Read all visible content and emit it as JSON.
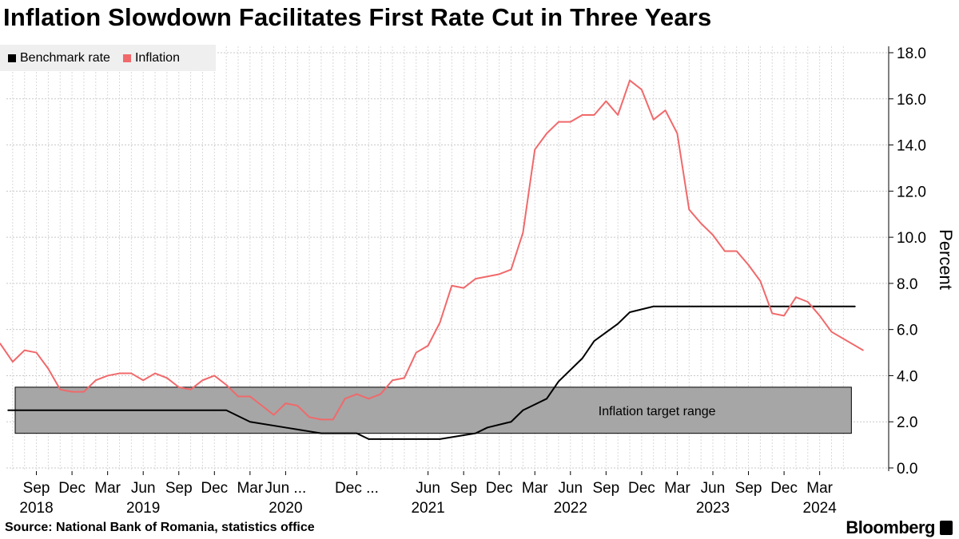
{
  "title": "Inflation Slowdown Facilitates First Rate Cut in Three Years",
  "source": "Source: National Bank of Romania, statistics office",
  "brand": "Bloomberg",
  "colors": {
    "benchmark": "#000000",
    "inflation": "#f0696b",
    "band": "#a6a6a6",
    "grid": "#c8c8c8"
  },
  "chart_data": {
    "type": "line",
    "title": "Inflation Slowdown Facilitates First Rate Cut in Three Years",
    "ylabel": "Percent",
    "xlabel": "",
    "ylim": [
      0,
      18
    ],
    "yticks": [
      "0.0",
      "2.0",
      "4.0",
      "6.0",
      "8.0",
      "10.0",
      "12.0",
      "14.0",
      "16.0",
      "18.0"
    ],
    "grid": true,
    "legend_position": "top-left",
    "x_range": [
      "2018-06",
      "2024-05"
    ],
    "x_ticks": [
      {
        "month": "2018-09",
        "label": "Sep",
        "year": "2018"
      },
      {
        "month": "2018-12",
        "label": "Dec",
        "year": ""
      },
      {
        "month": "2019-03",
        "label": "Mar",
        "year": ""
      },
      {
        "month": "2019-06",
        "label": "Jun",
        "year": "2019"
      },
      {
        "month": "2019-09",
        "label": "Sep",
        "year": ""
      },
      {
        "month": "2019-12",
        "label": "Dec",
        "year": ""
      },
      {
        "month": "2020-03",
        "label": "Mar",
        "year": ""
      },
      {
        "month": "2020-06",
        "label": "Jun ...",
        "year": "2020"
      },
      {
        "month": "2020-12",
        "label": "Dec ...",
        "year": ""
      },
      {
        "month": "2021-06",
        "label": "Jun",
        "year": "2021"
      },
      {
        "month": "2021-09",
        "label": "Sep",
        "year": ""
      },
      {
        "month": "2021-12",
        "label": "Dec",
        "year": ""
      },
      {
        "month": "2022-03",
        "label": "Mar",
        "year": ""
      },
      {
        "month": "2022-06",
        "label": "Jun",
        "year": "2022"
      },
      {
        "month": "2022-09",
        "label": "Sep",
        "year": ""
      },
      {
        "month": "2022-12",
        "label": "Dec",
        "year": ""
      },
      {
        "month": "2023-03",
        "label": "Mar",
        "year": ""
      },
      {
        "month": "2023-06",
        "label": "Jun",
        "year": "2023"
      },
      {
        "month": "2023-09",
        "label": "Sep",
        "year": ""
      },
      {
        "month": "2023-12",
        "label": "Dec",
        "year": ""
      },
      {
        "month": "2024-03",
        "label": "Mar",
        "year": "2024"
      }
    ],
    "band": {
      "name": "Inflation target range",
      "low": 1.5,
      "high": 3.5,
      "x_from": "2018-06",
      "x_to": "2024-05"
    },
    "series": [
      {
        "name": "Benchmark rate",
        "points": [
          [
            "2018-06",
            2.5
          ],
          [
            "2019-12",
            2.5
          ],
          [
            "2020-01",
            2.5
          ],
          [
            "2020-03",
            2.0
          ],
          [
            "2020-06",
            1.75
          ],
          [
            "2020-09",
            1.5
          ],
          [
            "2020-12",
            1.5
          ],
          [
            "2021-01",
            1.25
          ],
          [
            "2021-06",
            1.25
          ],
          [
            "2021-07",
            1.25
          ],
          [
            "2021-10",
            1.5
          ],
          [
            "2021-11",
            1.75
          ],
          [
            "2022-01",
            2.0
          ],
          [
            "2022-02",
            2.5
          ],
          [
            "2022-04",
            3.0
          ],
          [
            "2022-05",
            3.75
          ],
          [
            "2022-07",
            4.75
          ],
          [
            "2022-08",
            5.5
          ],
          [
            "2022-10",
            6.25
          ],
          [
            "2022-11",
            6.75
          ],
          [
            "2023-01",
            7.0
          ],
          [
            "2024-05",
            7.0
          ]
        ]
      },
      {
        "name": "Inflation",
        "points": [
          [
            "2018-06",
            5.4
          ],
          [
            "2018-07",
            4.6
          ],
          [
            "2018-08",
            5.1
          ],
          [
            "2018-09",
            5.0
          ],
          [
            "2018-10",
            4.3
          ],
          [
            "2018-11",
            3.4
          ],
          [
            "2018-12",
            3.3
          ],
          [
            "2019-01",
            3.3
          ],
          [
            "2019-02",
            3.8
          ],
          [
            "2019-03",
            4.0
          ],
          [
            "2019-04",
            4.1
          ],
          [
            "2019-05",
            4.1
          ],
          [
            "2019-06",
            3.8
          ],
          [
            "2019-07",
            4.1
          ],
          [
            "2019-08",
            3.9
          ],
          [
            "2019-09",
            3.5
          ],
          [
            "2019-10",
            3.4
          ],
          [
            "2019-11",
            3.8
          ],
          [
            "2019-12",
            4.0
          ],
          [
            "2020-01",
            3.6
          ],
          [
            "2020-02",
            3.1
          ],
          [
            "2020-03",
            3.1
          ],
          [
            "2020-04",
            2.7
          ],
          [
            "2020-05",
            2.3
          ],
          [
            "2020-06",
            2.8
          ],
          [
            "2020-07",
            2.7
          ],
          [
            "2020-08",
            2.2
          ],
          [
            "2020-09",
            2.1
          ],
          [
            "2020-10",
            2.1
          ],
          [
            "2020-11",
            3.0
          ],
          [
            "2020-12",
            3.2
          ],
          [
            "2021-01",
            3.0
          ],
          [
            "2021-02",
            3.2
          ],
          [
            "2021-03",
            3.8
          ],
          [
            "2021-04",
            3.9
          ],
          [
            "2021-05",
            5.0
          ],
          [
            "2021-06",
            5.3
          ],
          [
            "2021-07",
            6.3
          ],
          [
            "2021-08",
            7.9
          ],
          [
            "2021-09",
            7.8
          ],
          [
            "2021-10",
            8.2
          ],
          [
            "2021-11",
            8.3
          ],
          [
            "2021-12",
            8.4
          ],
          [
            "2022-01",
            8.6
          ],
          [
            "2022-02",
            10.2
          ],
          [
            "2022-03",
            13.8
          ],
          [
            "2022-04",
            14.5
          ],
          [
            "2022-05",
            15.0
          ],
          [
            "2022-06",
            15.0
          ],
          [
            "2022-07",
            15.3
          ],
          [
            "2022-08",
            15.3
          ],
          [
            "2022-09",
            15.9
          ],
          [
            "2022-10",
            15.3
          ],
          [
            "2022-11",
            16.8
          ],
          [
            "2022-12",
            16.4
          ],
          [
            "2023-01",
            15.1
          ],
          [
            "2023-02",
            15.5
          ],
          [
            "2023-03",
            14.5
          ],
          [
            "2023-04",
            11.2
          ],
          [
            "2023-05",
            10.6
          ],
          [
            "2023-06",
            10.1
          ],
          [
            "2023-07",
            9.4
          ],
          [
            "2023-08",
            9.4
          ],
          [
            "2023-09",
            8.8
          ],
          [
            "2023-10",
            8.1
          ],
          [
            "2023-11",
            6.7
          ],
          [
            "2023-12",
            6.6
          ],
          [
            "2024-01",
            7.4
          ],
          [
            "2024-02",
            7.2
          ],
          [
            "2024-03",
            6.6
          ],
          [
            "2024-04",
            5.9
          ],
          [
            "2024-05",
            5.1
          ]
        ]
      }
    ]
  }
}
